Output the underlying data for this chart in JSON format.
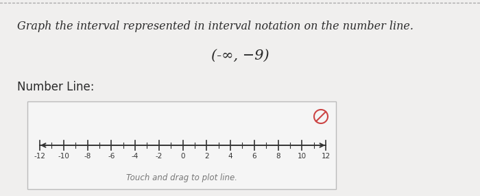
{
  "title_text": "Graph the interval represented in interval notation on the number line.",
  "interval_text": "(-∞, −9)",
  "section_label": "Number Line:",
  "touch_label": "Touch and drag to plot line.",
  "page_bg": "#f0efee",
  "box_bg": "#f5f5f5",
  "box_edge_color": "#bbbbbb",
  "number_line_min": -12,
  "number_line_max": 12,
  "tick_labels": [
    -12,
    -10,
    -8,
    -6,
    -4,
    -2,
    0,
    2,
    4,
    6,
    8,
    10,
    12
  ],
  "title_fontsize": 11.5,
  "interval_fontsize": 15,
  "section_fontsize": 12,
  "touch_fontsize": 8.5,
  "title_color": "#2a2a2a",
  "interval_color": "#2a2a2a",
  "section_color": "#2a2a2a",
  "touch_color": "#777777",
  "line_color": "#333333",
  "reset_icon_color": "#cc4444",
  "dotted_line_color": "#aaaaaa"
}
